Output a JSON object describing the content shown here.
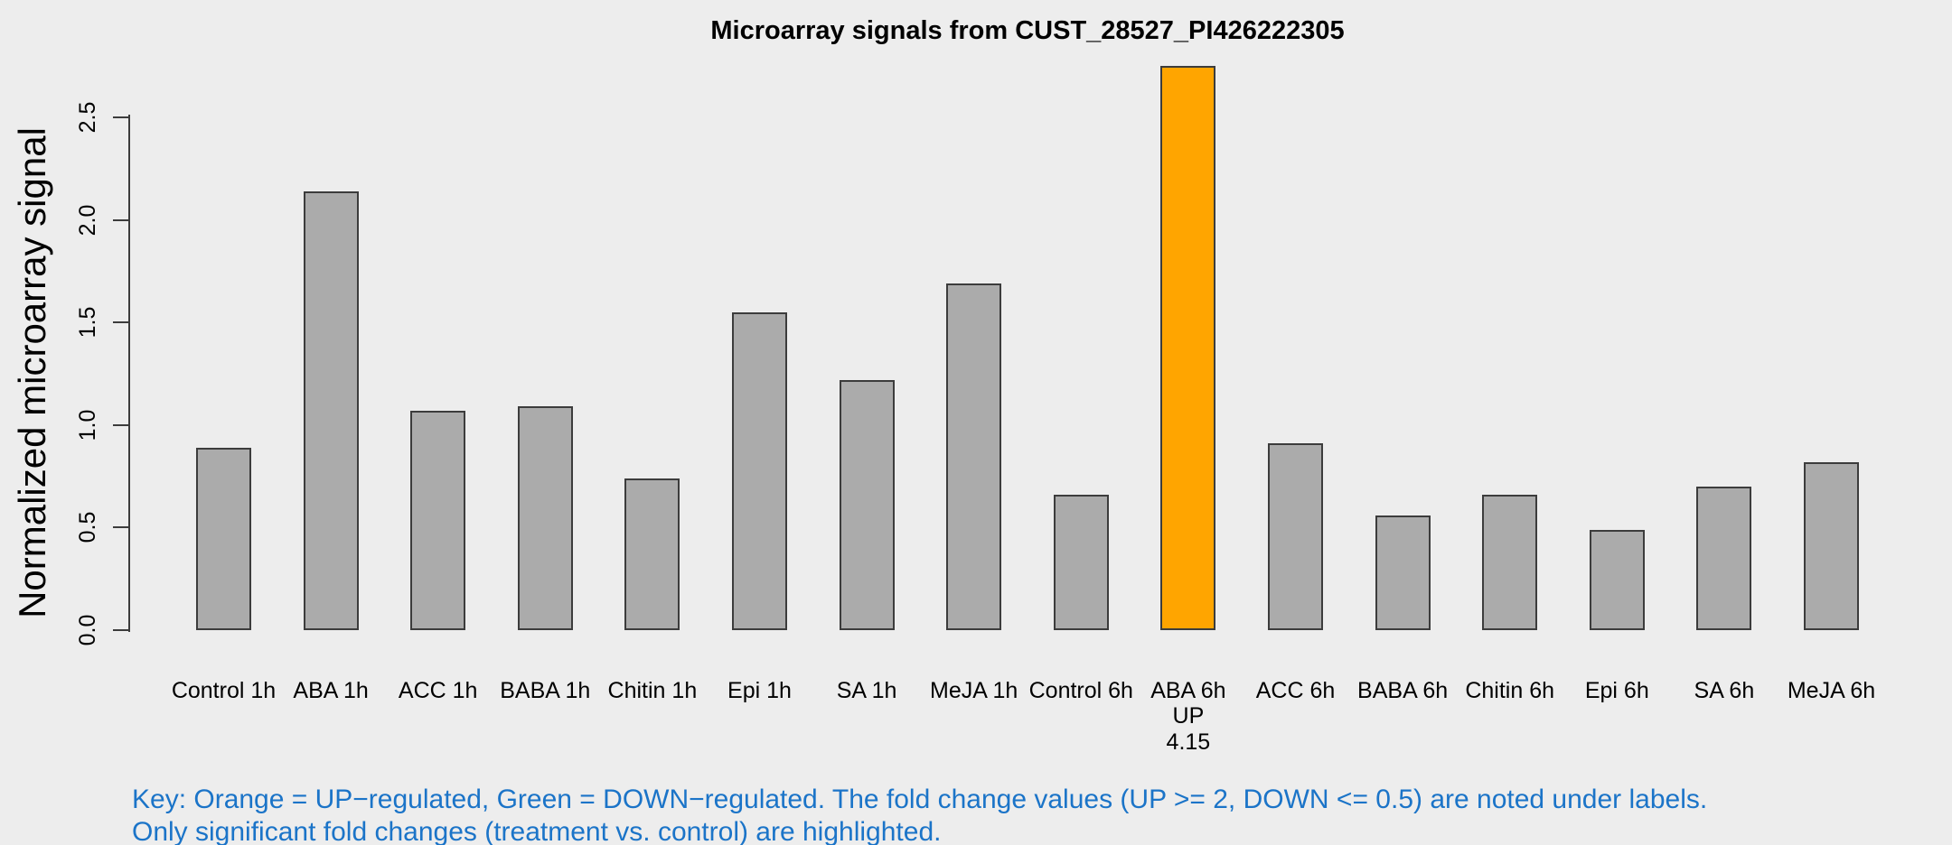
{
  "title": "Microarray signals from CUST_28527_PI426222305",
  "colors": {
    "background": "#EDEDED",
    "bar_fill": "#ABABAB",
    "bar_border": "#3C3C3C",
    "highlight_up": "#FFA500",
    "axis": "#3C3C3C",
    "text": "#000000",
    "key_text": "#1B74C8"
  },
  "key": {
    "line1": "Key: Orange = UP−regulated, Green = DOWN−regulated. The fold change values (UP >= 2, DOWN <= 0.5) are noted under labels.",
    "line2": "Only significant fold changes (treatment vs. control) are highlighted."
  },
  "chart_data": {
    "type": "bar",
    "title": "Microarray signals from CUST_28527_PI426222305",
    "xlabel": "",
    "ylabel": "Normalized microarray signal",
    "ylim": [
      0,
      2.8
    ],
    "grid": false,
    "legend": "none",
    "yticks": {
      "values": [
        0,
        0.5,
        1.0,
        1.5,
        2.0,
        2.5
      ],
      "labels": [
        "0.0",
        "0.5",
        "1.0",
        "1.5",
        "2.0",
        "2.5"
      ]
    },
    "categories": [
      "Control 1h",
      "ABA 1h",
      "ACC 1h",
      "BABA 1h",
      "Chitin 1h",
      "Epi 1h",
      "SA 1h",
      "MeJA 1h",
      "Control 6h",
      "ABA 6h",
      "ACC 6h",
      "BABA 6h",
      "Chitin 6h",
      "Epi 6h",
      "SA 6h",
      "MeJA 6h"
    ],
    "values": [
      0.89,
      2.14,
      1.07,
      1.09,
      0.74,
      1.55,
      1.22,
      1.69,
      0.66,
      2.75,
      0.91,
      0.56,
      0.66,
      0.49,
      0.7,
      0.82
    ],
    "bars": [
      {
        "category": "Control 1h",
        "value": 0.89,
        "state": "normal",
        "sublabels": []
      },
      {
        "category": "ABA 1h",
        "value": 2.14,
        "state": "normal",
        "sublabels": []
      },
      {
        "category": "ACC 1h",
        "value": 1.07,
        "state": "normal",
        "sublabels": []
      },
      {
        "category": "BABA 1h",
        "value": 1.09,
        "state": "normal",
        "sublabels": []
      },
      {
        "category": "Chitin 1h",
        "value": 0.74,
        "state": "normal",
        "sublabels": []
      },
      {
        "category": "Epi 1h",
        "value": 1.55,
        "state": "normal",
        "sublabels": []
      },
      {
        "category": "SA 1h",
        "value": 1.22,
        "state": "normal",
        "sublabels": []
      },
      {
        "category": "MeJA 1h",
        "value": 1.69,
        "state": "normal",
        "sublabels": []
      },
      {
        "category": "Control 6h",
        "value": 0.66,
        "state": "normal",
        "sublabels": []
      },
      {
        "category": "ABA 6h",
        "value": 2.75,
        "state": "up",
        "sublabels": [
          "UP",
          "4.15"
        ]
      },
      {
        "category": "ACC 6h",
        "value": 0.91,
        "state": "normal",
        "sublabels": []
      },
      {
        "category": "BABA 6h",
        "value": 0.56,
        "state": "normal",
        "sublabels": []
      },
      {
        "category": "Chitin 6h",
        "value": 0.66,
        "state": "normal",
        "sublabels": []
      },
      {
        "category": "Epi 6h",
        "value": 0.49,
        "state": "normal",
        "sublabels": []
      },
      {
        "category": "SA 6h",
        "value": 0.7,
        "state": "normal",
        "sublabels": []
      },
      {
        "category": "MeJA 6h",
        "value": 0.82,
        "state": "normal",
        "sublabels": []
      }
    ],
    "annotations": [
      {
        "category": "ABA 6h",
        "direction": "UP",
        "fold_change": "4.15"
      }
    ]
  }
}
